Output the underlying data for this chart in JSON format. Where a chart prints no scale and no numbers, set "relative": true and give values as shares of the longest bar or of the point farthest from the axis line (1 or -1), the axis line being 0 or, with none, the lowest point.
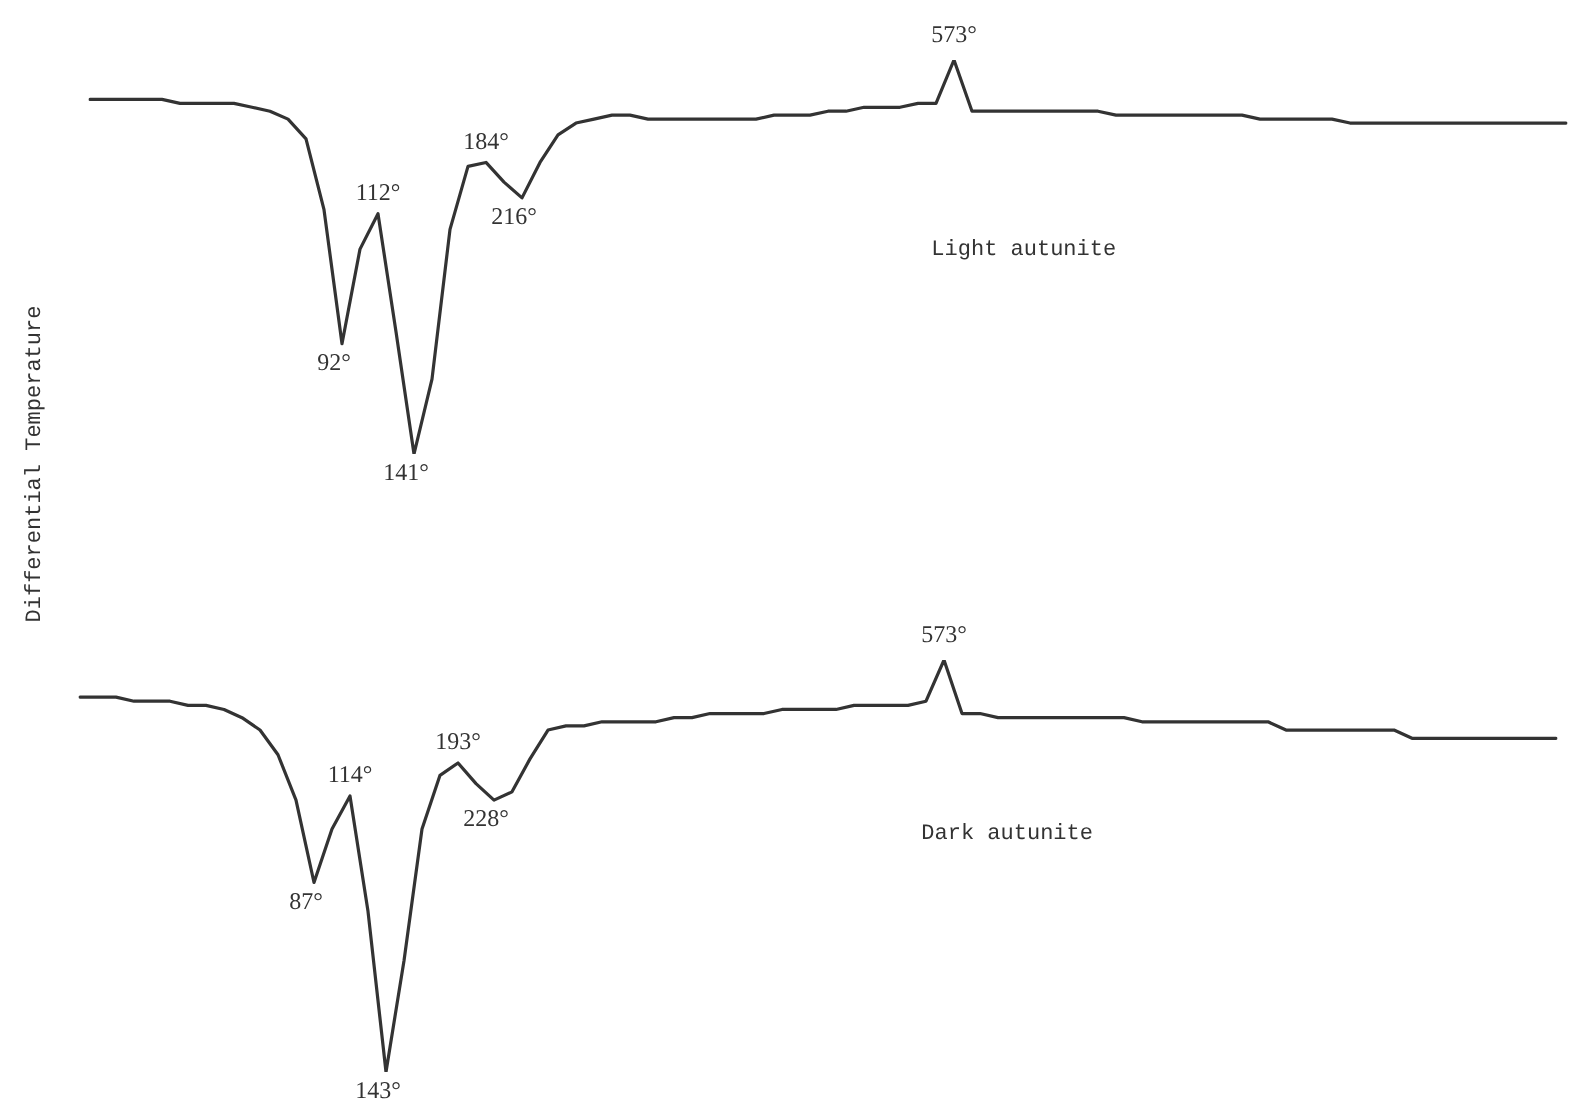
{
  "chart_data": [
    {
      "type": "line",
      "relative": true,
      "ylabel": "Differential Temperature",
      "categories": [
        null,
        null,
        null,
        null,
        null,
        null,
        null,
        null,
        null,
        null,
        null,
        null,
        null,
        null,
        null,
        null,
        null,
        null,
        null,
        null,
        null,
        null,
        null,
        null,
        null,
        null,
        null,
        null,
        null,
        null,
        null,
        null,
        null,
        null,
        null,
        null,
        null,
        null,
        null,
        null,
        null,
        null,
        null,
        null,
        null,
        null,
        null,
        null,
        null,
        null,
        null,
        null,
        null,
        null,
        null,
        null,
        null,
        null,
        null,
        null,
        null,
        null,
        null,
        null,
        null,
        null,
        null,
        null,
        null,
        null,
        null,
        null,
        null,
        null,
        null,
        null,
        null,
        null,
        null,
        null,
        null,
        null,
        null
      ],
      "legend": false,
      "marker": "none",
      "line_style": "solid",
      "annotations": [
        {
          "text": "92°",
          "y": 0.28
        },
        {
          "text": "112°",
          "y": 0.61
        },
        {
          "text": "141°",
          "y": 0
        },
        {
          "text": "184°",
          "y": 0.74
        },
        {
          "text": "216°",
          "y": 0.65
        },
        {
          "text": "573°",
          "y": 1
        }
      ],
      "series": [
        {
          "name": "Light autunite",
          "color": "#333333",
          "values": [
            0.9,
            0.9,
            0.9,
            0.9,
            0.9,
            0.89,
            0.89,
            0.89,
            0.89,
            0.88,
            0.87,
            0.85,
            0.8,
            0.62,
            0.28,
            0.52,
            0.61,
            0.31,
            0,
            0.19,
            0.57,
            0.73,
            0.74,
            0.69,
            0.65,
            0.74,
            0.81,
            0.84,
            0.85,
            0.86,
            0.86,
            0.85,
            0.85,
            0.85,
            0.85,
            0.85,
            0.85,
            0.85,
            0.86,
            0.86,
            0.86,
            0.87,
            0.87,
            0.88,
            0.88,
            0.88,
            0.89,
            0.89,
            1,
            0.87,
            0.87,
            0.87,
            0.87,
            0.87,
            0.87,
            0.87,
            0.87,
            0.86,
            0.86,
            0.86,
            0.86,
            0.86,
            0.86,
            0.86,
            0.86,
            0.85,
            0.85,
            0.85,
            0.85,
            0.85,
            0.84,
            0.84,
            0.84,
            0.84,
            0.84,
            0.84,
            0.84,
            0.84,
            0.84,
            0.84,
            0.84,
            0.84,
            0.84
          ]
        }
      ]
    },
    {
      "type": "line",
      "relative": true,
      "categories": [
        null,
        null,
        null,
        null,
        null,
        null,
        null,
        null,
        null,
        null,
        null,
        null,
        null,
        null,
        null,
        null,
        null,
        null,
        null,
        null,
        null,
        null,
        null,
        null,
        null,
        null,
        null,
        null,
        null,
        null,
        null,
        null,
        null,
        null,
        null,
        null,
        null,
        null,
        null,
        null,
        null,
        null,
        null,
        null,
        null,
        null,
        null,
        null,
        null,
        null,
        null,
        null,
        null,
        null,
        null,
        null,
        null,
        null,
        null,
        null,
        null,
        null,
        null,
        null,
        null,
        null,
        null,
        null,
        null,
        null,
        null,
        null,
        null,
        null,
        null,
        null,
        null,
        null,
        null,
        null,
        null,
        null,
        null
      ],
      "legend": false,
      "marker": "none",
      "line_style": "solid",
      "annotations": [
        {
          "text": "87°",
          "y": 0.46
        },
        {
          "text": "114°",
          "y": 0.67
        },
        {
          "text": "143°",
          "y": 0
        },
        {
          "text": "193°",
          "y": 0.75
        },
        {
          "text": "228°",
          "y": 0.66
        },
        {
          "text": "573°",
          "y": 1
        }
      ],
      "series": [
        {
          "name": "Dark autunite",
          "color": "#333333",
          "values": [
            0.91,
            0.91,
            0.91,
            0.9,
            0.9,
            0.9,
            0.89,
            0.89,
            0.88,
            0.86,
            0.83,
            0.77,
            0.66,
            0.46,
            0.59,
            0.67,
            0.39,
            0,
            0.27,
            0.59,
            0.72,
            0.75,
            0.7,
            0.66,
            0.68,
            0.76,
            0.83,
            0.84,
            0.84,
            0.85,
            0.85,
            0.85,
            0.85,
            0.86,
            0.86,
            0.87,
            0.87,
            0.87,
            0.87,
            0.88,
            0.88,
            0.88,
            0.88,
            0.89,
            0.89,
            0.89,
            0.89,
            0.9,
            1,
            0.87,
            0.87,
            0.86,
            0.86,
            0.86,
            0.86,
            0.86,
            0.86,
            0.86,
            0.86,
            0.85,
            0.85,
            0.85,
            0.85,
            0.85,
            0.85,
            0.85,
            0.85,
            0.83,
            0.83,
            0.83,
            0.83,
            0.83,
            0.83,
            0.83,
            0.81,
            0.81,
            0.81,
            0.81,
            0.81,
            0.81,
            0.81,
            0.81,
            0.81
          ]
        }
      ]
    }
  ]
}
